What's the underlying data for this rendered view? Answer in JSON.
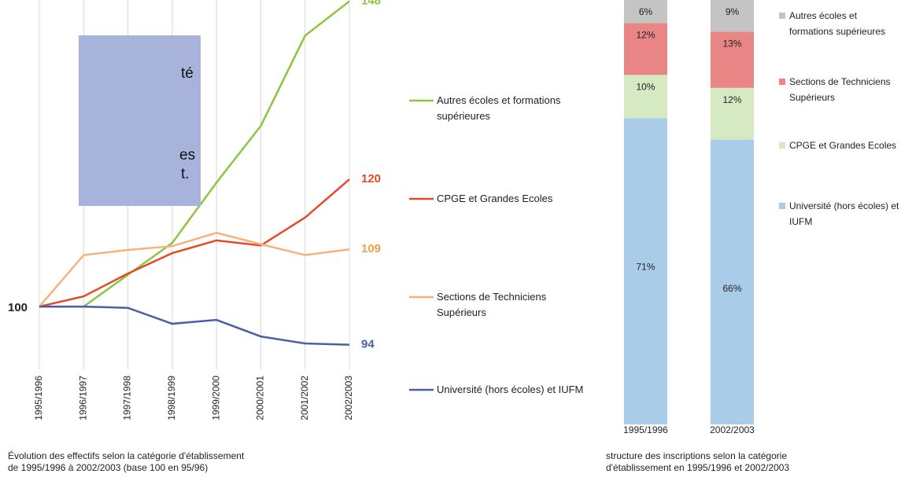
{
  "overlay_box": {
    "fragments": [
      "té",
      "es",
      "t."
    ]
  },
  "chart_data": [
    {
      "type": "line",
      "categories": [
        "1995/1996",
        "1996/1997",
        "1997/1998",
        "1998/1999",
        "1999/2000",
        "2000/2001",
        "2001/2002",
        "2002/2003"
      ],
      "ylim": [
        90,
        148.2
      ],
      "caption": [
        "Évolution des effectifs selon la catégorie d'établissement",
        "de 1995/1996 à 2002/2003 (base 100 en 95/96)"
      ],
      "series": [
        {
          "name": "Autres écoles et formations supérieures",
          "color": "#8cc63f",
          "values": [
            100,
            100,
            105,
            110,
            119.5,
            128.4,
            142.6,
            148
          ]
        },
        {
          "name": "CPGE et Grandes Ecoles",
          "color": "#e34a2b",
          "values": [
            100,
            101.6,
            105.2,
            108.4,
            110.4,
            109.6,
            114,
            120
          ]
        },
        {
          "name": "Sections de Techniciens Supérieurs",
          "color": "#f7b27a",
          "values": [
            100,
            108.1,
            108.9,
            109.5,
            111.6,
            109.8,
            108.1,
            109
          ]
        },
        {
          "name": "Université (hors écoles) et IUFM",
          "color": "#4b5eaa",
          "values": [
            100,
            100,
            99.8,
            97.3,
            97.9,
            95.3,
            94.2,
            94
          ]
        }
      ]
    },
    {
      "type": "stacked-bar",
      "categories": [
        "1995/1996",
        "2002/2003"
      ],
      "ylim": [
        0,
        100
      ],
      "caption": [
        "structure des inscriptions selon la catégorie",
        "d'établissement en 1995/1996 et 2002/2003"
      ],
      "series": [
        {
          "name": "Université (hors écoles) et IUFM",
          "color": "#a9cde9",
          "values": [
            71,
            66
          ],
          "value_labels": [
            "71%",
            "66%"
          ]
        },
        {
          "name": "CPGE et Grandes Ecoles",
          "color": "#d5e9c2",
          "values": [
            10,
            12
          ],
          "value_labels": [
            "10%",
            "12%"
          ]
        },
        {
          "name": "Sections de Techniciens Supérieurs",
          "color": "#e98585",
          "values": [
            12,
            13
          ],
          "value_labels": [
            "12%",
            "13%"
          ]
        },
        {
          "name": "Autres écoles et formations supérieures",
          "color": "#c4c4c4",
          "values": [
            6,
            9
          ],
          "value_labels": [
            "6%",
            "9%"
          ]
        }
      ]
    }
  ]
}
